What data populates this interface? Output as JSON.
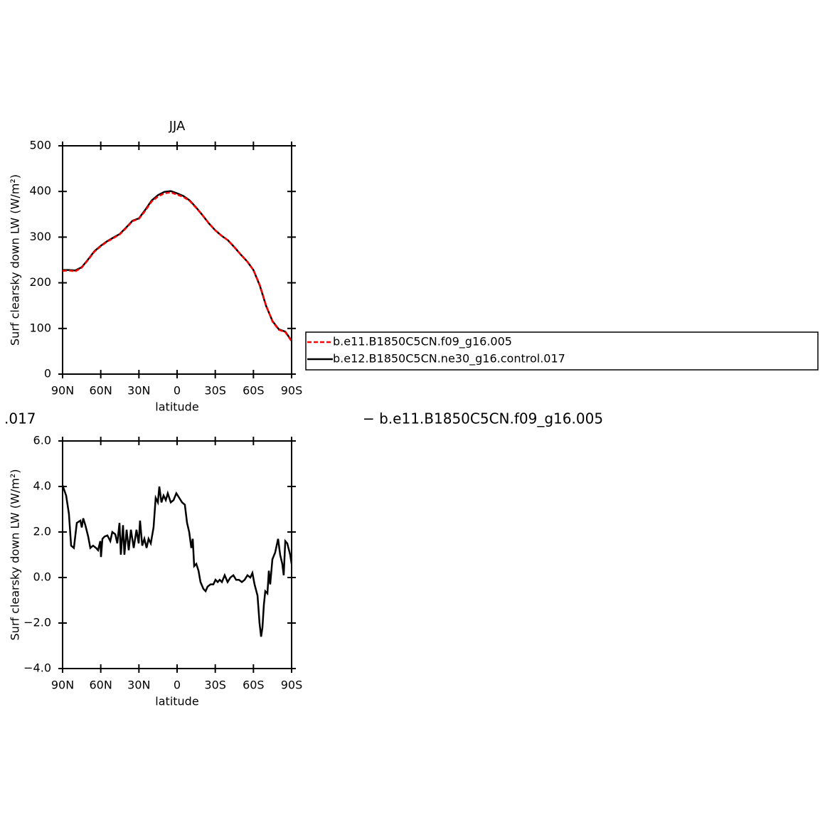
{
  "chart_data": [
    {
      "type": "line",
      "title": "JJA",
      "x_label": "latitude",
      "y_label": "Surf clearsky down LW (W/m²)",
      "x": [
        90,
        85,
        80,
        75,
        70,
        65,
        60,
        55,
        50,
        45,
        40,
        35,
        30,
        25,
        20,
        15,
        10,
        5,
        0,
        -5,
        -10,
        -15,
        -20,
        -25,
        -30,
        -35,
        -40,
        -45,
        -50,
        -55,
        -60,
        -65,
        -70,
        -75,
        -80,
        -85,
        -90
      ],
      "series": [
        {
          "name": "b.e11.B1850C5CN.f09_g16.005",
          "color": "#ff0000",
          "dash": true,
          "values": [
            226,
            227,
            225,
            233,
            250,
            268,
            280,
            290,
            298,
            306,
            320,
            335,
            340,
            358,
            378,
            389,
            396,
            398,
            393,
            388,
            379,
            364,
            348,
            330,
            315,
            303,
            293,
            278,
            262,
            247,
            228,
            195,
            150,
            115,
            97,
            92,
            72
          ]
        },
        {
          "name": "b.e12.B1850C5CN.ne30_g16.control.017",
          "color": "#000000",
          "dash": false,
          "values": [
            228,
            228,
            227,
            234,
            251,
            269,
            281,
            291,
            299,
            307,
            321,
            336,
            341,
            360,
            380,
            392,
            399,
            401,
            396,
            390,
            380,
            365,
            348,
            330,
            315,
            303,
            293,
            278,
            262,
            247,
            228,
            194,
            149,
            116,
            98,
            93,
            73
          ]
        }
      ],
      "xlim": [
        90,
        -90
      ],
      "xticks": [
        {
          "value": 90,
          "label": "90N"
        },
        {
          "value": 60,
          "label": "60N"
        },
        {
          "value": 30,
          "label": "30N"
        },
        0,
        {
          "value": -30,
          "label": "30S"
        },
        {
          "value": -60,
          "label": "60S"
        },
        {
          "value": -90,
          "label": "90S"
        }
      ],
      "ylim": [
        0,
        500
      ],
      "yticks": [
        0,
        100,
        200,
        300,
        400,
        500
      ]
    },
    {
      "type": "line",
      "subtitle_left": ".017",
      "subtitle": "− b.e11.B1850C5CN.f09_g16.005",
      "x_label": "latitude",
      "y_label": "Surf clearsky down LW (W/m²)",
      "x": [
        90,
        87.2,
        85,
        83.3,
        81.1,
        78.8,
        76,
        74.9,
        73.8,
        72.1,
        69.9,
        68.2,
        66,
        63.7,
        62.1,
        60.4,
        59.8,
        58.7,
        57,
        54.8,
        52.5,
        50.9,
        48.6,
        47,
        45.3,
        44.2,
        42.5,
        41.4,
        39.7,
        38,
        36.3,
        34.1,
        31.9,
        30.2,
        29.1,
        27.4,
        25.7,
        24,
        22.4,
        20.7,
        18.5,
        16.8,
        15.1,
        14,
        12.3,
        10.6,
        8.9,
        7.3,
        5,
        2.8,
        0.6,
        -1.7,
        -3.9,
        -6.1,
        -7.8,
        -9.5,
        -11.2,
        -12.3,
        -13.4,
        -15.1,
        -16.8,
        -18.4,
        -20.7,
        -22.4,
        -24,
        -26.3,
        -28.5,
        -30.2,
        -31.9,
        -33.5,
        -35.2,
        -37.4,
        -39.7,
        -41.9,
        -44.2,
        -46.4,
        -48.6,
        -50.9,
        -53.1,
        -55.3,
        -57.6,
        -59.2,
        -60.9,
        -63.2,
        -64.8,
        -66,
        -67.1,
        -68.2,
        -69.3,
        -71,
        -72.1,
        -73.2,
        -74.9,
        -77.1,
        -79.4,
        -81,
        -82.7,
        -83.8,
        -85,
        -86.6,
        -88.9,
        -90
      ],
      "series": [
        {
          "color": "#000000",
          "values": [
            4.05,
            3.6,
            2.8,
            1.4,
            1.3,
            2.4,
            2.5,
            2.2,
            2.6,
            2.3,
            1.8,
            1.3,
            1.4,
            1.3,
            1.2,
            1.6,
            0.9,
            1.7,
            1.8,
            1.85,
            1.6,
            2.0,
            1.9,
            1.5,
            2.4,
            1.0,
            2.3,
            1.0,
            2.1,
            1.2,
            2.1,
            1.3,
            2.1,
            1.5,
            2.5,
            1.4,
            1.7,
            1.3,
            1.7,
            1.5,
            2.2,
            3.5,
            3.3,
            4.0,
            3.3,
            3.6,
            3.4,
            3.7,
            3.3,
            3.4,
            3.7,
            3.5,
            3.3,
            3.2,
            2.4,
            2.0,
            1.3,
            1.7,
            0.5,
            0.6,
            0.3,
            -0.2,
            -0.5,
            -0.6,
            -0.4,
            -0.3,
            -0.3,
            -0.1,
            -0.2,
            -0.1,
            -0.2,
            0.1,
            -0.2,
            0.0,
            0.1,
            -0.1,
            -0.1,
            -0.2,
            -0.1,
            0.1,
            0.0,
            0.2,
            -0.3,
            -0.8,
            -2.0,
            -2.6,
            -2.2,
            -1.2,
            -0.6,
            -0.7,
            0.3,
            -0.3,
            0.8,
            1.1,
            1.7,
            1.0,
            0.6,
            0.1,
            1.6,
            1.5,
            1.0,
            0.6
          ]
        }
      ],
      "xlim": [
        90,
        -90
      ],
      "xticks": [
        {
          "value": 90,
          "label": "90N"
        },
        {
          "value": 60,
          "label": "60N"
        },
        {
          "value": 30,
          "label": "30N"
        },
        0,
        {
          "value": -30,
          "label": "30S"
        },
        {
          "value": -60,
          "label": "60S"
        },
        {
          "value": -90,
          "label": "90S"
        }
      ],
      "ylim": [
        -4,
        6
      ],
      "yticks": [
        {
          "value": -4,
          "label": "−4.0"
        },
        {
          "value": -2,
          "label": "−2.0"
        },
        {
          "value": 0,
          "label": "0.0"
        },
        {
          "value": 2,
          "label": "2.0"
        },
        {
          "value": 4,
          "label": "4.0"
        },
        {
          "value": 6,
          "label": "6.0"
        }
      ]
    }
  ]
}
